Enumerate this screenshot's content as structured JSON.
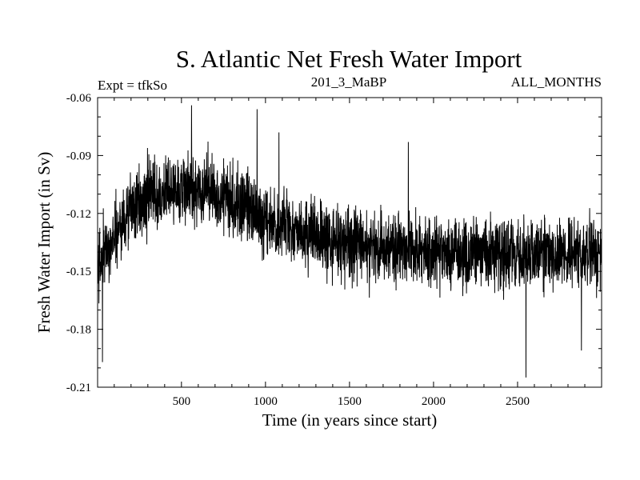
{
  "chart_data": {
    "type": "line",
    "title": "S. Atlantic Net Fresh Water Import",
    "subtitle_left": "Expt = tfkSo",
    "subtitle_center": "201_3_MaBP",
    "subtitle_right": "ALL_MONTHS",
    "xlabel": "Time (in years since start)",
    "ylabel": "Fresh Water Import (in Sv)",
    "xlim": [
      1,
      3000
    ],
    "ylim": [
      -0.21,
      -0.06
    ],
    "xticks": [
      500,
      1000,
      1500,
      2000,
      2500
    ],
    "yticks": [
      -0.06,
      -0.09,
      -0.12,
      -0.15,
      -0.18,
      -0.21
    ],
    "xtick_labels": [
      "500",
      "1000",
      "1500",
      "2000",
      "2500"
    ],
    "ytick_labels": [
      "-0.06",
      "-0.09",
      "-0.12",
      "-0.15",
      "-0.18",
      "-0.21"
    ],
    "series": [
      {
        "name": "Net Fresh Water Import",
        "color": "#000000",
        "trend": {
          "x": [
            1,
            100,
            200,
            300,
            400,
            500,
            600,
            700,
            800,
            900,
            1000,
            1200,
            1400,
            1600,
            1800,
            2000,
            2200,
            2400,
            2600,
            2800,
            3000
          ],
          "y": [
            -0.148,
            -0.131,
            -0.118,
            -0.112,
            -0.109,
            -0.107,
            -0.107,
            -0.109,
            -0.112,
            -0.118,
            -0.124,
            -0.13,
            -0.134,
            -0.137,
            -0.139,
            -0.14,
            -0.141,
            -0.141,
            -0.141,
            -0.141,
            -0.141
          ]
        },
        "noise_amplitude": 0.009,
        "extremes": [
          {
            "x": 30,
            "y": -0.197
          },
          {
            "x": 560,
            "y": -0.064
          },
          {
            "x": 950,
            "y": -0.066
          },
          {
            "x": 1080,
            "y": -0.078
          },
          {
            "x": 1850,
            "y": -0.083
          },
          {
            "x": 2550,
            "y": -0.205
          },
          {
            "x": 2880,
            "y": -0.191
          }
        ]
      }
    ]
  }
}
